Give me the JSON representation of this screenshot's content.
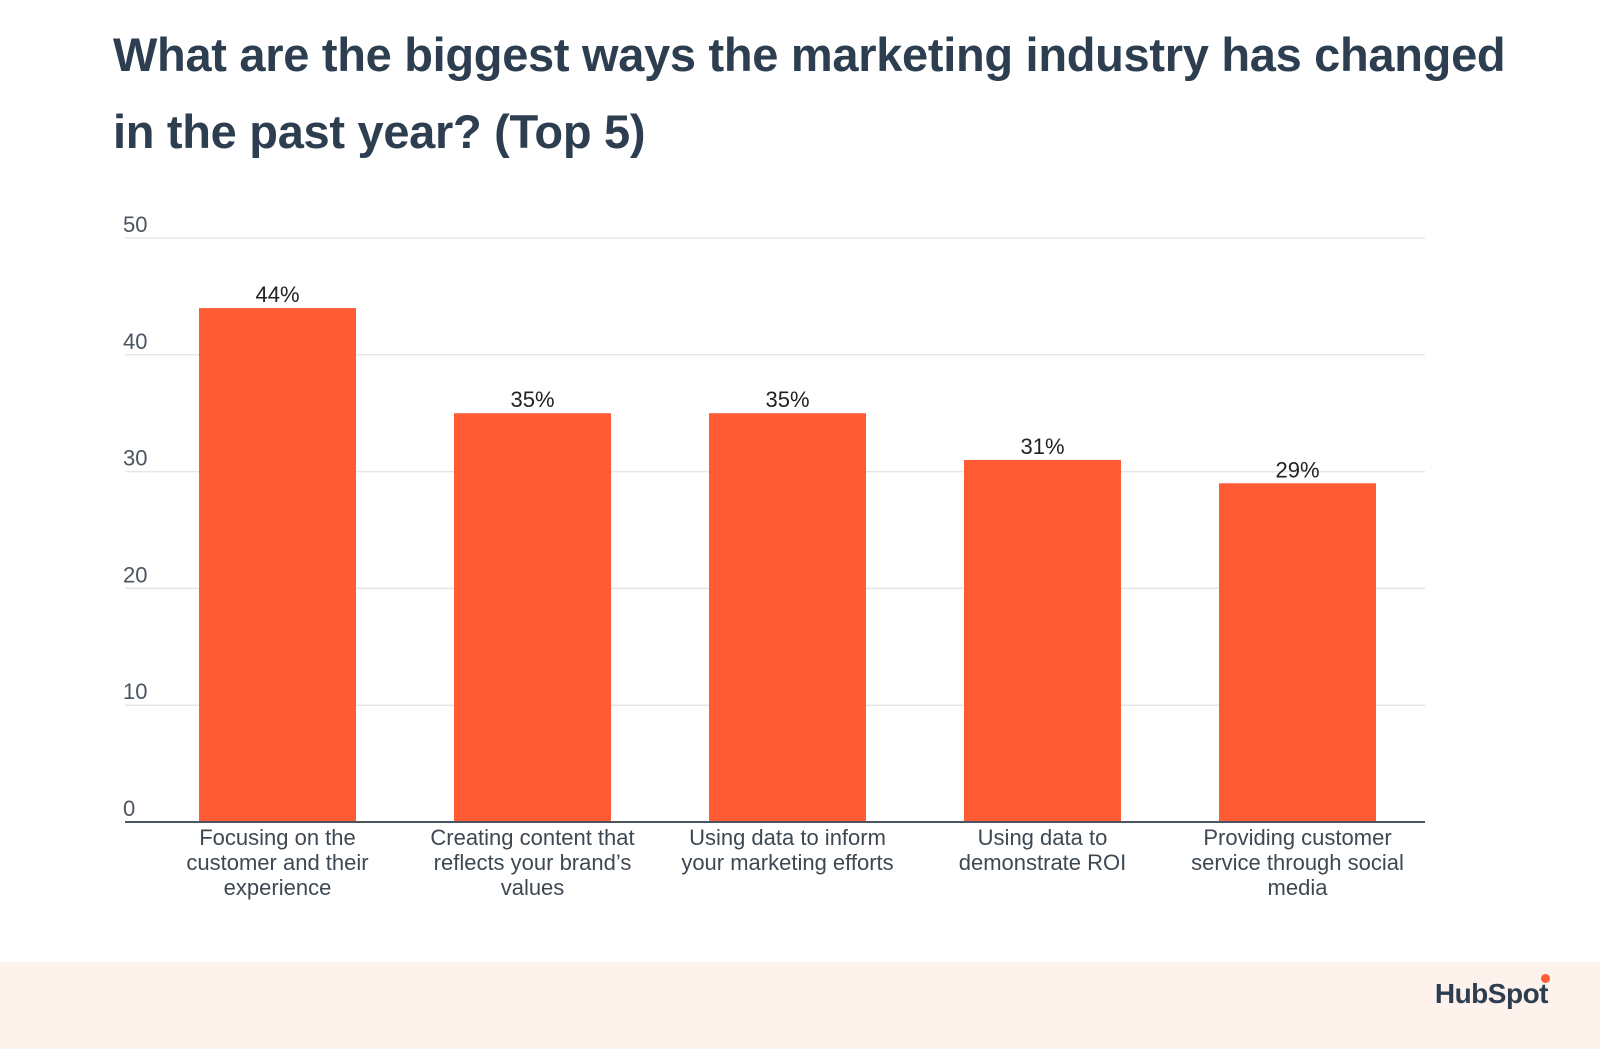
{
  "title": "What are the biggest ways the marketing industry has changed in the past year? (Top 5)",
  "brand": "HubSpot",
  "colors": {
    "bar": "#ff5c35",
    "title": "#2d3e50",
    "grid": "#e6e6e6",
    "footer": "#fdf3ec"
  },
  "chart_data": {
    "type": "bar",
    "title": "What are the biggest ways the marketing industry has changed in the past year? (Top 5)",
    "xlabel": "",
    "ylabel": "",
    "ylim": [
      0,
      50
    ],
    "yticks": [
      0,
      10,
      20,
      30,
      40,
      50
    ],
    "grid": true,
    "categories": [
      [
        "Focusing on the",
        "customer and their",
        "experience"
      ],
      [
        "Creating content that",
        "reflects your brand’s",
        "values"
      ],
      [
        "Using data to inform",
        "your marketing efforts"
      ],
      [
        "Using data to",
        "demonstrate ROI"
      ],
      [
        "Providing customer",
        "service through social",
        "media"
      ]
    ],
    "values": [
      44,
      35,
      35,
      31,
      29
    ],
    "data_labels": [
      "44%",
      "35%",
      "35%",
      "31%",
      "29%"
    ]
  }
}
